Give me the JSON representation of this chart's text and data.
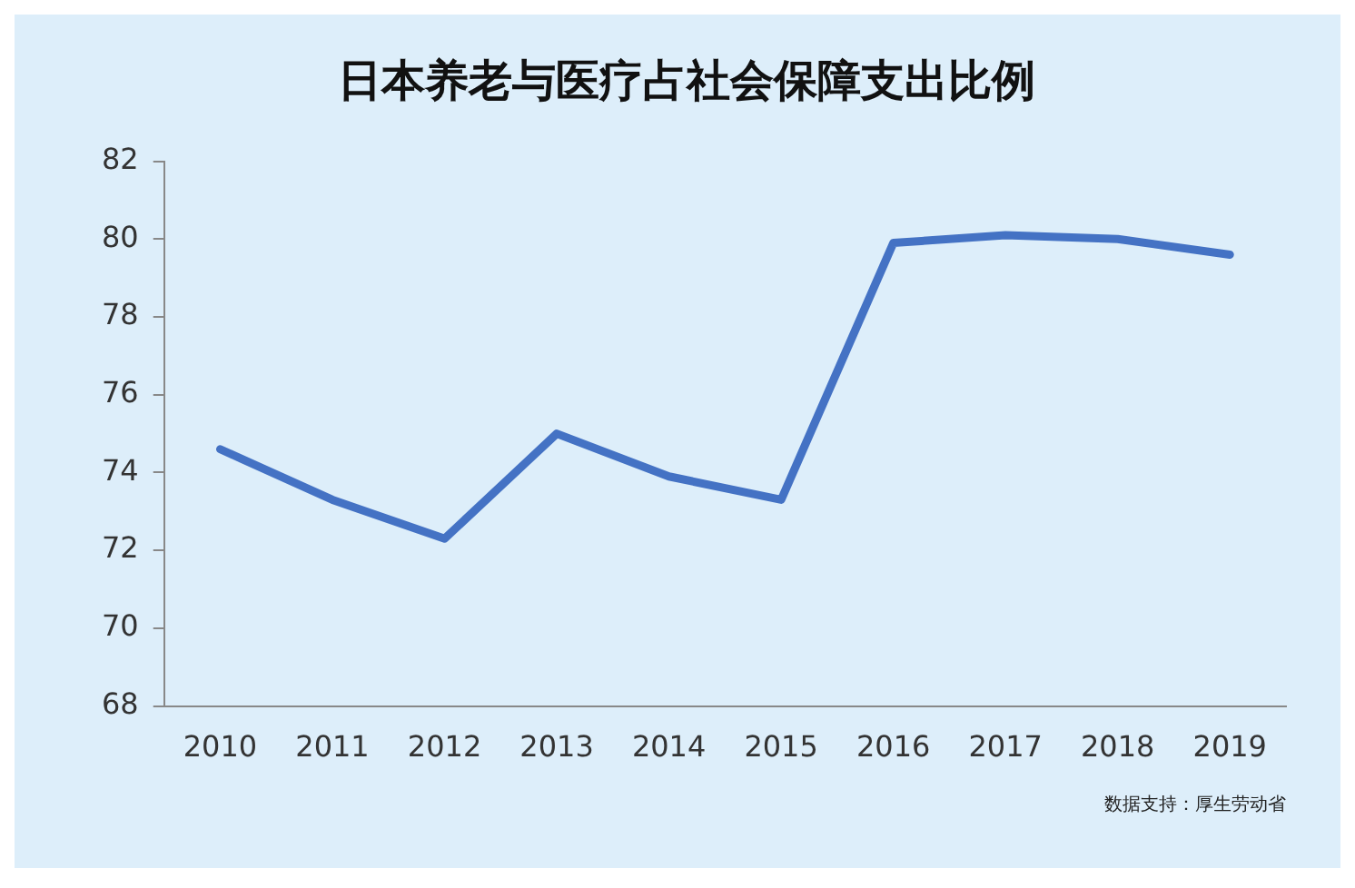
{
  "chart_data": {
    "type": "line",
    "title": "日本养老与医疗占社会保障支出比例",
    "categories": [
      "2010",
      "2011",
      "2012",
      "2013",
      "2014",
      "2015",
      "2016",
      "2017",
      "2018",
      "2019"
    ],
    "series": [
      {
        "color": "#4472c4",
        "values": [
          74.6,
          73.3,
          72.3,
          75.0,
          73.9,
          73.3,
          79.9,
          80.1,
          80.0,
          79.6
        ]
      }
    ],
    "ylim": [
      68,
      82
    ],
    "yticks": [
      68,
      70,
      72,
      74,
      76,
      78,
      80,
      82
    ],
    "grid": false,
    "legend": false,
    "marker": "none",
    "line_style": "solid",
    "annotations": [
      "数据支持：厚生劳动省"
    ]
  }
}
